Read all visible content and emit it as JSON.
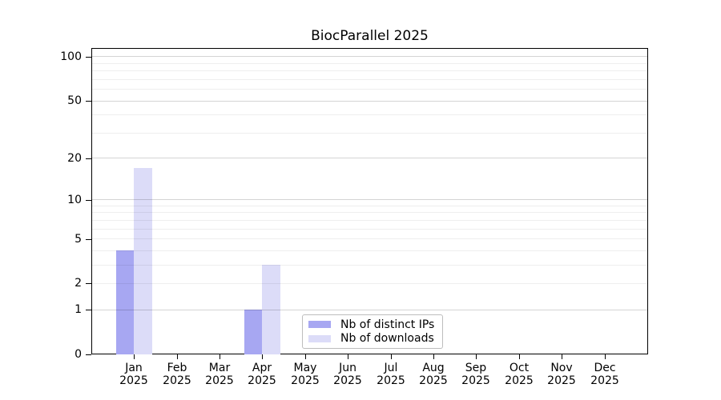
{
  "chart_data": {
    "type": "bar",
    "title": "BiocParallel 2025",
    "categories": [
      "Jan",
      "Feb",
      "Mar",
      "Apr",
      "May",
      "Jun",
      "Jul",
      "Aug",
      "Sep",
      "Oct",
      "Nov",
      "Dec"
    ],
    "x_sublabel": "2025",
    "series": [
      {
        "name": "Nb of distinct IPs",
        "key": "distinct-ips",
        "color": "#a7a7f2",
        "values": [
          4,
          0,
          0,
          1,
          0,
          0,
          0,
          0,
          0,
          0,
          0,
          0
        ]
      },
      {
        "name": "Nb of downloads",
        "key": "downloads",
        "color": "#dcdcf8",
        "values": [
          17,
          0,
          0,
          3,
          0,
          0,
          0,
          0,
          0,
          0,
          0,
          0
        ]
      }
    ],
    "y_scale": "log1p",
    "y_ticks": [
      0,
      1,
      2,
      5,
      10,
      20,
      50,
      100
    ],
    "y_ticks_major_grid": [
      1,
      10,
      20,
      50,
      100
    ],
    "y_grid_minor": [
      2,
      3,
      4,
      5,
      6,
      7,
      8,
      9,
      30,
      40,
      60,
      70,
      80,
      90
    ],
    "ylim": [
      0,
      114.7
    ],
    "xlabel": "",
    "ylabel": "",
    "grid": "horizontal",
    "legend": {
      "position": "lower-center-inside"
    }
  },
  "colors": {
    "axis": "#000000",
    "grid_major": "#d4d4d4",
    "grid_minor": "#efefef",
    "background": "#ffffff"
  }
}
